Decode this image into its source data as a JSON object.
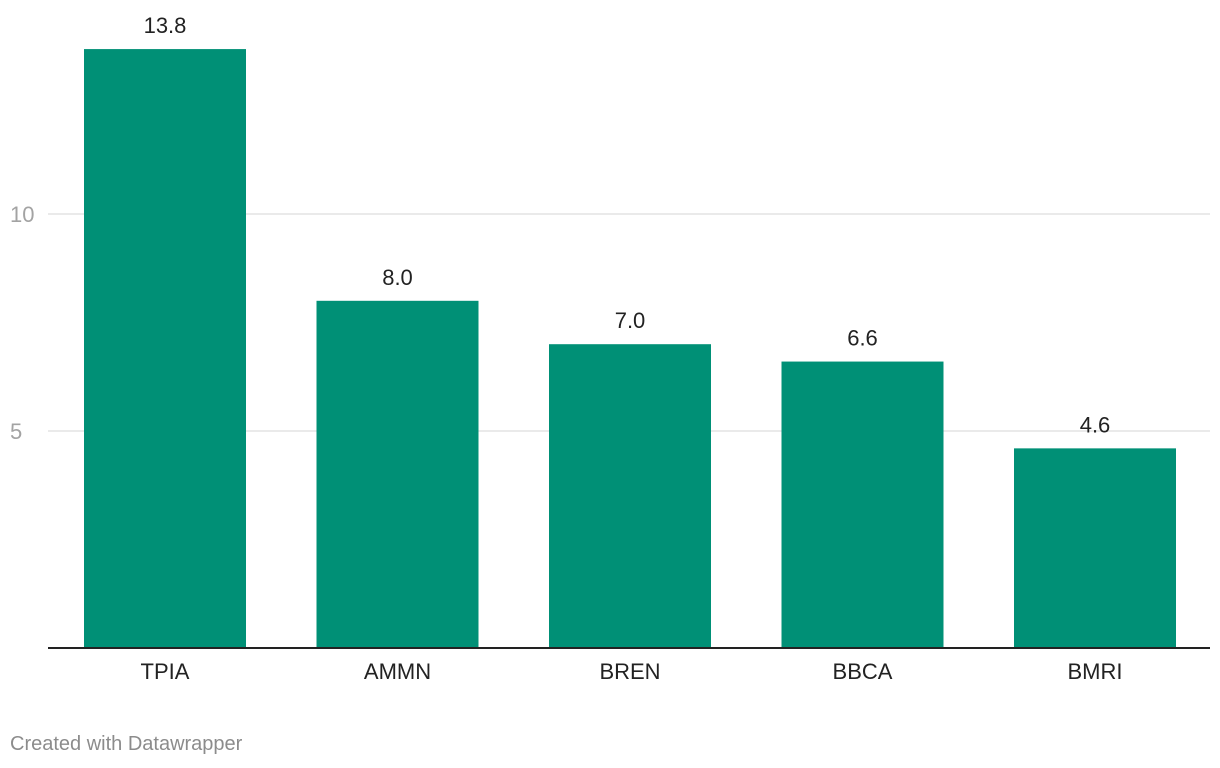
{
  "chart_data": {
    "type": "bar",
    "categories": [
      "TPIA",
      "AMMN",
      "BREN",
      "BBCA",
      "BMRI"
    ],
    "values": [
      13.8,
      8.0,
      7.0,
      6.6,
      4.6
    ],
    "value_labels": [
      "13.8",
      "8.0",
      "7.0",
      "6.6",
      "4.6"
    ],
    "yticks": [
      5,
      10
    ],
    "ylim": [
      0,
      14.5
    ],
    "grid": true,
    "bar_color": "#009076"
  },
  "footer": {
    "credit": "Created with Datawrapper"
  }
}
